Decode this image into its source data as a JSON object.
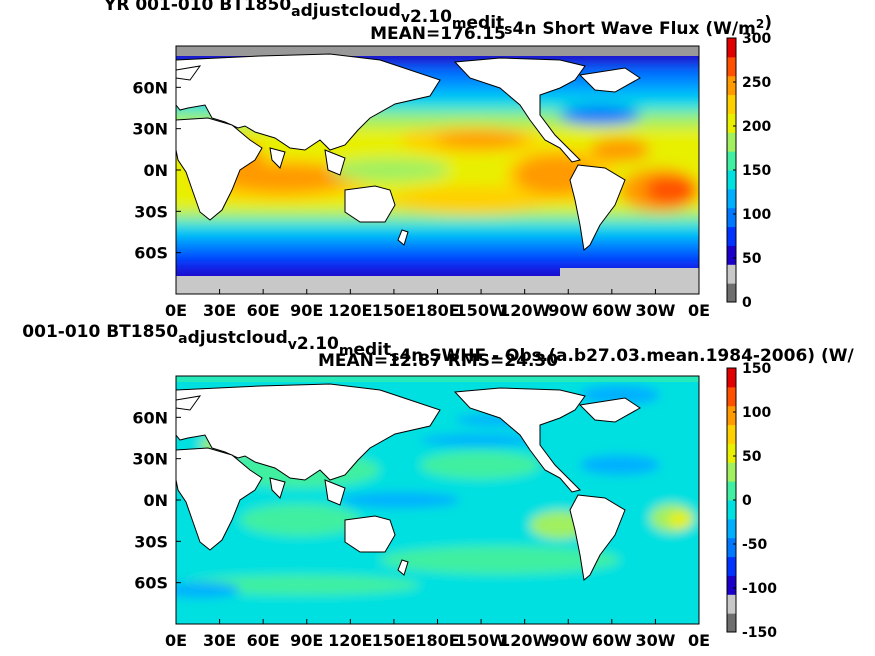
{
  "figure": {
    "panels": [
      {
        "title_pieces": [
          "YR 001-010 BT1850",
          "a",
          "djustcloud",
          "v",
          "2.10",
          "m",
          "edit",
          "s",
          "4n  Short Wave Flux (W/m",
          "2",
          ")"
        ],
        "subtitle": "MEAN=176.15"
      },
      {
        "title_pieces": [
          "001-010 BT1850",
          "a",
          "djustcloud",
          "v",
          "2.10",
          "m",
          "edit",
          "s",
          "4n SWHF - Obs.(a.b27.03.mean.1984-2006) (W/"
        ],
        "subtitle": "MEAN=12.87 RMS=24.30"
      }
    ]
  },
  "chart_data": [
    {
      "type": "heatmap",
      "title": "YR 001-010 BT1850_adjustcloud_v2.10_medit_s4n  Short Wave Flux (W/m^2)",
      "subtitle": "MEAN=176.15",
      "x_tick_labels": [
        "0E",
        "30E",
        "60E",
        "90E",
        "120E",
        "150E",
        "180E",
        "150W",
        "120W",
        "90W",
        "60W",
        "30W",
        "0E"
      ],
      "y_tick_labels": [
        "60N",
        "30N",
        "0N",
        "30S",
        "60S"
      ],
      "colorbar": {
        "ticks": [
          0,
          50,
          100,
          150,
          200,
          250,
          300
        ],
        "range": [
          0,
          300
        ]
      },
      "mean": 176.15
    },
    {
      "type": "heatmap",
      "title": "001-010 BT1850_adjustcloud_v2.10_medit_s4n SWHF - Obs.(a.b27.03.mean.1984-2006) (W/",
      "subtitle": "MEAN=12.87 RMS=24.30",
      "x_tick_labels": [
        "0E",
        "30E",
        "60E",
        "90E",
        "120E",
        "150E",
        "180E",
        "150W",
        "120W",
        "90W",
        "60W",
        "30W",
        "0E"
      ],
      "y_tick_labels": [
        "60N",
        "30N",
        "0N",
        "30S",
        "60S"
      ],
      "colorbar": {
        "ticks": [
          -150,
          -100,
          -50,
          0,
          50,
          100,
          150
        ],
        "range": [
          -150,
          150
        ]
      },
      "mean": 12.87,
      "rms": 24.3
    }
  ],
  "colors": {
    "scale": [
      "#6e6e6e",
      "#c8c8c8",
      "#1a00c8",
      "#0033ff",
      "#0077ff",
      "#00b0ff",
      "#00e0e0",
      "#40f0a0",
      "#a0f060",
      "#e8f000",
      "#ffd000",
      "#ff9a00",
      "#ff5000",
      "#e00000"
    ],
    "land": "#ffffff"
  }
}
